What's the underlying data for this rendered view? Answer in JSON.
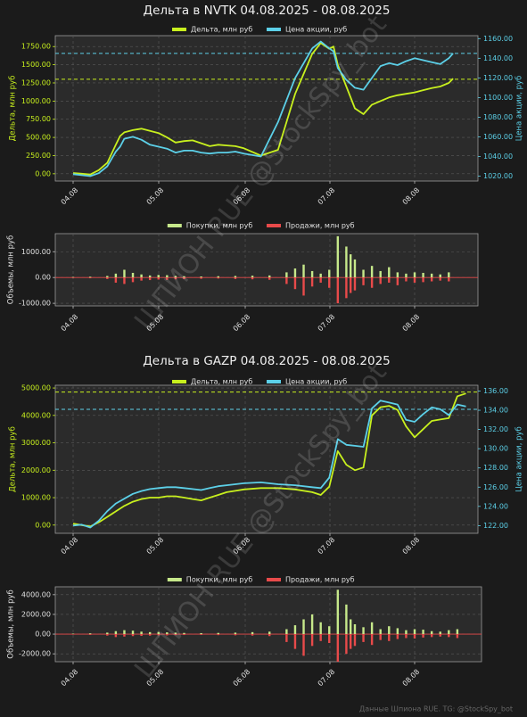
{
  "colors": {
    "bg": "#1b1b1b",
    "plot_bg": "#2b2b2b",
    "delta": "#c8f01e",
    "price": "#5cd0e8",
    "buys": "#c6e88a",
    "sells": "#e84a4a",
    "text": "#e0e0e0",
    "grid": "#5a5a5a"
  },
  "footer": {
    "text": "Данные Шпиона RUE. TG: @StockSpy_bot"
  },
  "watermark": {
    "text": "ШПИОН RUE @StockSpy_bot"
  },
  "chart_data": [
    {
      "type": "line",
      "title": "Дельта в NVTK 04.08.2025 - 08.08.2025",
      "ylabel": "Дельта, млн руб",
      "ylabel_right": "Цена акции, руб",
      "legend": [
        "Дельта, млн руб",
        "Цена акции, руб"
      ],
      "x_ticks": [
        "04.08",
        "05.08",
        "06.08",
        "07.08",
        "08.08"
      ],
      "yticks_left": [
        "0.00",
        "250.00",
        "500.00",
        "750.00",
        "1000.00",
        "1250.00",
        "1500.00",
        "1750.00"
      ],
      "yticks_right": [
        "1020.00",
        "1040.00",
        "1060.00",
        "1080.00",
        "1100.00",
        "1120.00",
        "1140.00",
        "1160.00"
      ],
      "ylim": [
        -100,
        1900
      ],
      "ylim_right": [
        1015,
        1163
      ],
      "grid": true,
      "legend_position": "top",
      "hline_delta": 1300,
      "hline_price": 1145,
      "x": [
        0,
        0.1,
        0.2,
        0.3,
        0.4,
        0.5,
        0.55,
        0.6,
        0.7,
        0.8,
        0.9,
        1,
        1.1,
        1.2,
        1.3,
        1.4,
        1.5,
        1.6,
        1.7,
        1.8,
        1.9,
        2,
        2.2,
        2.4,
        2.6,
        2.8,
        2.9,
        3,
        3.05,
        3.1,
        3.2,
        3.3,
        3.4,
        3.5,
        3.6,
        3.7,
        3.8,
        3.9,
        4,
        4.1,
        4.2,
        4.3,
        4.4,
        4.45
      ],
      "series": [
        {
          "name": "Дельта, млн руб",
          "values": [
            10,
            0,
            -10,
            50,
            150,
            400,
            520,
            570,
            600,
            620,
            590,
            560,
            500,
            430,
            450,
            460,
            420,
            380,
            400,
            390,
            380,
            350,
            250,
            330,
            1100,
            1650,
            1800,
            1720,
            1750,
            1500,
            1200,
            900,
            820,
            950,
            1000,
            1050,
            1080,
            1100,
            1120,
            1150,
            1180,
            1200,
            1250,
            1310
          ]
        },
        {
          "name": "Цена акции, руб",
          "values": [
            1022,
            1021,
            1020,
            1023,
            1030,
            1045,
            1050,
            1058,
            1060,
            1057,
            1052,
            1050,
            1048,
            1044,
            1046,
            1046,
            1044,
            1043,
            1044,
            1044,
            1045,
            1043,
            1040,
            1075,
            1120,
            1150,
            1157,
            1150,
            1147,
            1130,
            1118,
            1110,
            1108,
            1120,
            1132,
            1135,
            1133,
            1137,
            1140,
            1138,
            1136,
            1134,
            1140,
            1145
          ]
        }
      ]
    },
    {
      "type": "bar",
      "ylabel": "Объемы, млн руб",
      "legend": [
        "Покупки, млн руб",
        "Продажи, млн руб"
      ],
      "x_ticks": [
        "04.08",
        "05.08",
        "06.08",
        "07.08",
        "08.08"
      ],
      "yticks": [
        "-1000.00",
        "0.00",
        "1000.00"
      ],
      "ylim": [
        -1100,
        1700
      ],
      "grid": true,
      "legend_position": "top",
      "x": [
        0,
        0.2,
        0.4,
        0.5,
        0.6,
        0.7,
        0.8,
        0.9,
        1,
        1.1,
        1.2,
        1.3,
        1.5,
        1.7,
        1.9,
        2.1,
        2.3,
        2.5,
        2.6,
        2.7,
        2.8,
        2.9,
        3,
        3.1,
        3.2,
        3.25,
        3.3,
        3.4,
        3.5,
        3.6,
        3.7,
        3.8,
        3.9,
        4,
        4.1,
        4.2,
        4.3,
        4.4
      ],
      "series": [
        {
          "name": "Покупки, млн руб",
          "values": [
            20,
            30,
            60,
            150,
            300,
            180,
            120,
            80,
            100,
            90,
            60,
            50,
            40,
            50,
            60,
            70,
            80,
            200,
            350,
            500,
            250,
            150,
            300,
            1600,
            1200,
            900,
            700,
            300,
            450,
            250,
            400,
            200,
            150,
            200,
            180,
            150,
            120,
            200
          ]
        },
        {
          "name": "Продажи, млн руб",
          "values": [
            -20,
            -30,
            -60,
            -200,
            -250,
            -180,
            -120,
            -100,
            -80,
            -90,
            -70,
            -60,
            -50,
            -40,
            -60,
            -70,
            -90,
            -250,
            -450,
            -700,
            -350,
            -200,
            -400,
            -1000,
            -800,
            -600,
            -500,
            -300,
            -400,
            -250,
            -200,
            -300,
            -150,
            -200,
            -180,
            -150,
            -120,
            -150
          ]
        }
      ]
    },
    {
      "type": "line",
      "title": "Дельта в GAZP 04.08.2025 - 08.08.2025",
      "ylabel": "Дельта, млн руб",
      "ylabel_right": "Цена акции, руб",
      "legend": [
        "Дельта, млн руб",
        "Цена акции, руб"
      ],
      "x_ticks": [
        "04.08",
        "05.08",
        "06.08",
        "07.08",
        "08.08"
      ],
      "yticks_left": [
        "0.00",
        "1000.00",
        "2000.00",
        "3000.00",
        "4000.00",
        "5000.00"
      ],
      "yticks_right": [
        "122.00",
        "124.00",
        "126.00",
        "128.00",
        "130.00",
        "132.00",
        "134.00",
        "136.00"
      ],
      "ylim": [
        -300,
        5100
      ],
      "ylim_right": [
        121.2,
        136.6
      ],
      "grid": true,
      "legend_position": "top",
      "hline_delta": 4850,
      "hline_price": 134.1,
      "x": [
        0,
        0.1,
        0.2,
        0.3,
        0.4,
        0.5,
        0.6,
        0.7,
        0.8,
        0.9,
        1,
        1.1,
        1.2,
        1.3,
        1.4,
        1.5,
        1.6,
        1.7,
        1.8,
        1.9,
        2,
        2.2,
        2.4,
        2.6,
        2.8,
        2.9,
        3,
        3.1,
        3.2,
        3.3,
        3.4,
        3.5,
        3.6,
        3.7,
        3.8,
        3.9,
        4,
        4.1,
        4.2,
        4.3,
        4.4,
        4.5,
        4.6
      ],
      "series": [
        {
          "name": "Дельта, млн руб",
          "values": [
            50,
            0,
            -50,
            100,
            300,
            500,
            700,
            850,
            950,
            1000,
            1000,
            1050,
            1050,
            1000,
            950,
            900,
            1000,
            1100,
            1200,
            1250,
            1300,
            1350,
            1350,
            1300,
            1200,
            1100,
            1400,
            2700,
            2200,
            2000,
            2100,
            4000,
            4300,
            4350,
            4200,
            3600,
            3200,
            3500,
            3800,
            3850,
            3900,
            4700,
            4800
          ]
        },
        {
          "name": "Цена акции, руб",
          "values": [
            122.0,
            122.1,
            121.8,
            122.5,
            123.5,
            124.3,
            124.8,
            125.3,
            125.6,
            125.8,
            125.9,
            126.0,
            126.0,
            125.9,
            125.8,
            125.7,
            125.9,
            126.1,
            126.2,
            126.3,
            126.4,
            126.5,
            126.3,
            126.2,
            126.0,
            125.9,
            127.0,
            131.0,
            130.4,
            130.3,
            130.2,
            134.2,
            135.0,
            134.8,
            134.6,
            133.0,
            132.8,
            133.6,
            134.3,
            134.1,
            133.5,
            134.6,
            134.4
          ]
        }
      ]
    },
    {
      "type": "bar",
      "ylabel": "Объемы, млн руб",
      "legend": [
        "Покупки, млн руб",
        "Продажи, млн руб"
      ],
      "x_ticks": [
        "04.08",
        "05.08",
        "06.08",
        "07.08",
        "08.08"
      ],
      "yticks": [
        "-2000.00",
        "0.00",
        "2000.00",
        "4000.00"
      ],
      "ylim": [
        -2800,
        4800
      ],
      "grid": true,
      "legend_position": "top",
      "x": [
        0,
        0.2,
        0.4,
        0.5,
        0.6,
        0.7,
        0.8,
        0.9,
        1,
        1.1,
        1.2,
        1.3,
        1.5,
        1.7,
        1.9,
        2.1,
        2.3,
        2.5,
        2.6,
        2.7,
        2.8,
        2.9,
        3,
        3.1,
        3.2,
        3.25,
        3.3,
        3.4,
        3.5,
        3.6,
        3.7,
        3.8,
        3.9,
        4,
        4.1,
        4.2,
        4.3,
        4.4,
        4.5
      ],
      "series": [
        {
          "name": "Покупки, млн руб",
          "values": [
            50,
            80,
            150,
            300,
            400,
            350,
            250,
            200,
            220,
            180,
            150,
            120,
            100,
            120,
            150,
            200,
            250,
            500,
            900,
            1500,
            2000,
            1200,
            800,
            4500,
            3000,
            1500,
            1000,
            700,
            1200,
            500,
            800,
            600,
            400,
            500,
            450,
            300,
            250,
            400,
            500
          ]
        },
        {
          "name": "Продажи, млн руб",
          "values": [
            -50,
            -80,
            -150,
            -300,
            -250,
            -200,
            -180,
            -150,
            -120,
            -130,
            -100,
            -90,
            -80,
            -100,
            -120,
            -150,
            -200,
            -800,
            -1500,
            -2200,
            -1200,
            -700,
            -900,
            -2800,
            -2000,
            -1500,
            -1200,
            -800,
            -1100,
            -600,
            -700,
            -500,
            -400,
            -450,
            -350,
            -300,
            -250,
            -300,
            -400
          ]
        }
      ]
    }
  ]
}
